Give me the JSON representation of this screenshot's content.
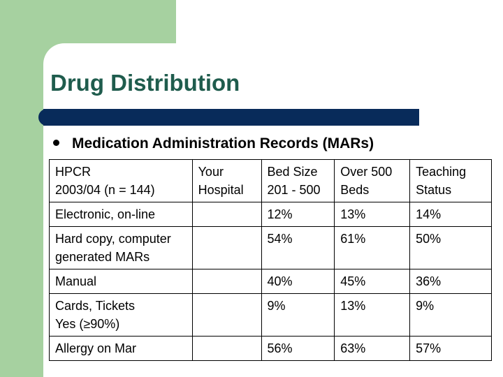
{
  "slide": {
    "title": "Drug Distribution",
    "bullet": "Medication Administration Records (MARs)"
  },
  "table": {
    "header": {
      "c1_line1": "HPCR",
      "c1_line2": "2003/04 (n = 144)",
      "c2": "Your Hospital",
      "c3_line1": "Bed Size",
      "c3_line2": "201 - 500",
      "c4_line1": "Over 500",
      "c4_line2": "Beds",
      "c5_line1": "Teaching",
      "c5_line2": "Status"
    },
    "rows": [
      {
        "label_line1": "Electronic, on-line",
        "label_line2": "",
        "your_hospital": "",
        "bed_201_500": "12%",
        "over_500": "13%",
        "teaching": "14%"
      },
      {
        "label_line1": "Hard copy, computer",
        "label_line2": "generated MARs",
        "your_hospital": "",
        "bed_201_500": "54%",
        "over_500": "61%",
        "teaching": "50%"
      },
      {
        "label_line1": "Manual",
        "label_line2": "",
        "your_hospital": "",
        "bed_201_500": "40%",
        "over_500": "45%",
        "teaching": "36%"
      },
      {
        "label_line1": "Cards, Tickets",
        "label_line2": "Yes (≥90%)",
        "your_hospital": "",
        "bed_201_500": "9%",
        "over_500": "13%",
        "teaching": "9%"
      },
      {
        "label_line1": "Allergy on Mar",
        "label_line2": "",
        "your_hospital": "",
        "bed_201_500": "56%",
        "over_500": "63%",
        "teaching": "57%"
      }
    ]
  }
}
